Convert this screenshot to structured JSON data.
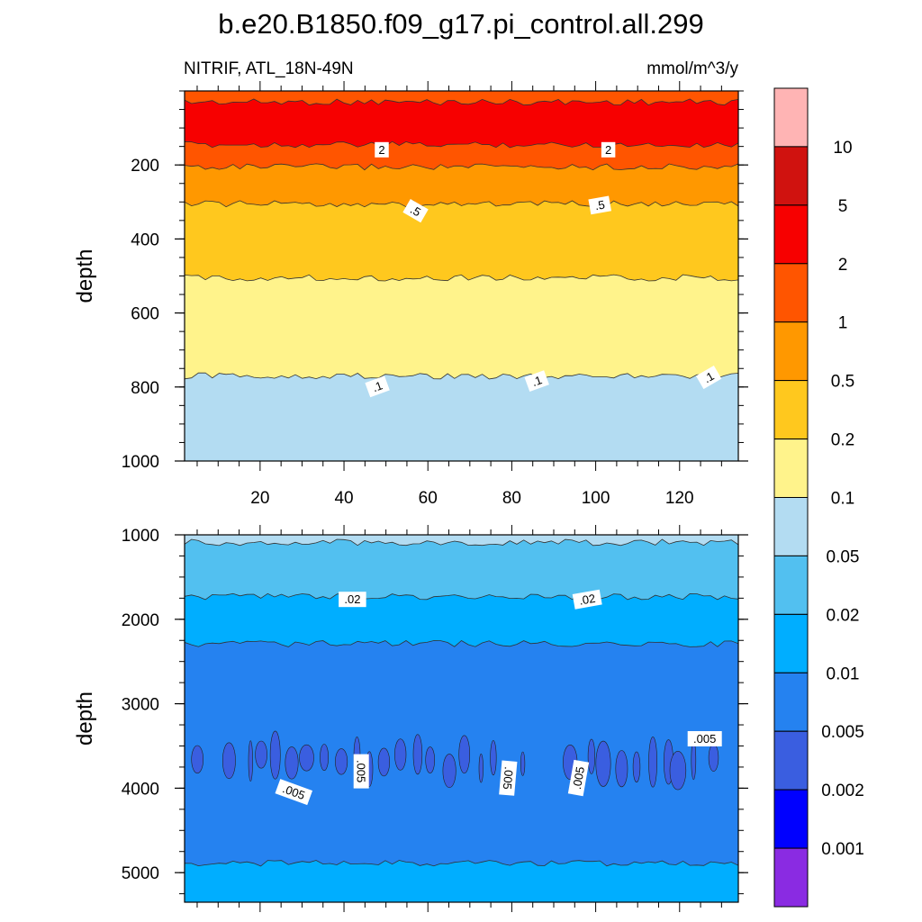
{
  "chart_data": {
    "type": "contour",
    "title": "b.e20.B1850.f09_g17.pi_control.all.299",
    "subtitle_left": "NITRIF, ATL_18N-49N",
    "subtitle_right": "mmol/m^3/y",
    "ylabel": "depth",
    "x_ticks": [
      20,
      40,
      60,
      80,
      100,
      120
    ],
    "xlim": [
      2,
      134
    ],
    "colorbar": {
      "levels": [
        0.001,
        0.002,
        0.005,
        0.01,
        0.02,
        0.05,
        0.1,
        0.2,
        0.5,
        1,
        2,
        5,
        10
      ],
      "labels": [
        "0.001",
        "0.002",
        "0.005",
        "0.01",
        "0.02",
        "0.05",
        "0.1",
        "0.2",
        "0.5",
        "1",
        "2",
        "5",
        "10"
      ],
      "colors": [
        "#8a2be2",
        "#0000ff",
        "#3a5ee0",
        "#2582f0",
        "#00aeff",
        "#52c0f0",
        "#b3dcf2",
        "#fff38b",
        "#ffc81e",
        "#ff9800",
        "#ff5500",
        "#f70000",
        "#d0120f",
        "#ffb4b4"
      ]
    },
    "panels": [
      {
        "name": "upper",
        "ylim": [
          1000,
          0
        ],
        "y_ticks": [
          200,
          400,
          600,
          800,
          1000
        ],
        "bands": [
          {
            "top": 0,
            "bottom": 30,
            "color": "#ff5500"
          },
          {
            "top": 30,
            "bottom": 145,
            "color": "#f70000"
          },
          {
            "top": 145,
            "bottom": 205,
            "color": "#ff5500"
          },
          {
            "top": 205,
            "bottom": 305,
            "color": "#ff9800"
          },
          {
            "top": 305,
            "bottom": 505,
            "color": "#ffc81e"
          },
          {
            "top": 505,
            "bottom": 770,
            "color": "#fff38b"
          },
          {
            "top": 770,
            "bottom": 1000,
            "color": "#b3dcf2"
          }
        ],
        "contour_labels": [
          {
            "text": "2",
            "x": 49,
            "depth": 160,
            "angle": 0
          },
          {
            "text": "2",
            "x": 103,
            "depth": 160,
            "angle": 0
          },
          {
            "text": ".5",
            "x": 57,
            "depth": 325,
            "angle": 30
          },
          {
            "text": ".5",
            "x": 101,
            "depth": 310,
            "angle": -10
          },
          {
            "text": ".1",
            "x": 48,
            "depth": 800,
            "angle": -20
          },
          {
            "text": ".1",
            "x": 86,
            "depth": 785,
            "angle": -20
          },
          {
            "text": ".1",
            "x": 127,
            "depth": 775,
            "angle": -30
          }
        ]
      },
      {
        "name": "lower",
        "ylim": [
          5350,
          1000
        ],
        "y_ticks": [
          1000,
          2000,
          3000,
          4000,
          5000
        ],
        "bands": [
          {
            "top": 1000,
            "bottom": 1090,
            "color": "#b3dcf2"
          },
          {
            "top": 1090,
            "bottom": 1730,
            "color": "#52c0f0"
          },
          {
            "top": 1730,
            "bottom": 2290,
            "color": "#00aeff"
          },
          {
            "top": 2290,
            "bottom": 4890,
            "color": "#2582f0"
          },
          {
            "top": 4890,
            "bottom": 5350,
            "color": "#00aeff"
          }
        ],
        "contour_labels": [
          {
            "text": ".02",
            "x": 42,
            "depth": 1770,
            "angle": 0
          },
          {
            "text": ".02",
            "x": 98,
            "depth": 1770,
            "angle": -10
          },
          {
            "text": ".005",
            "x": 126,
            "depth": 3420,
            "angle": 0
          },
          {
            "text": ".005",
            "x": 44,
            "depth": 3800,
            "angle": 90
          },
          {
            "text": ".005",
            "x": 28,
            "depth": 4050,
            "angle": 20
          },
          {
            "text": ".005",
            "x": 79,
            "depth": 3880,
            "angle": 95
          },
          {
            "text": ".005",
            "x": 96,
            "depth": 3880,
            "angle": -80
          }
        ]
      }
    ]
  }
}
